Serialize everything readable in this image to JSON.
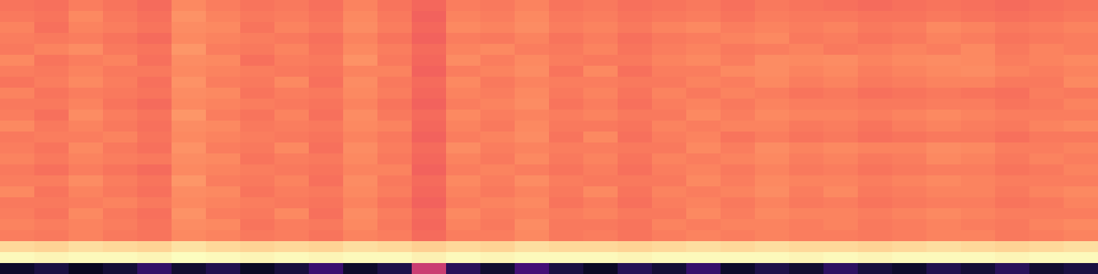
{
  "chart_data": {
    "type": "heatmap",
    "tick_labels": false,
    "zlim": [
      0,
      100
    ],
    "cells": [
      [
        71,
        70,
        73,
        71,
        69,
        75,
        73,
        71,
        72,
        70,
        74,
        71,
        68,
        73,
        72,
        74,
        71,
        72,
        70,
        71,
        72,
        70,
        72,
        71,
        70,
        69,
        70,
        71,
        70,
        69,
        70,
        71
      ],
      [
        72,
        71,
        75,
        72,
        70,
        77,
        74,
        72,
        73,
        71,
        75,
        72,
        67,
        74,
        73,
        75,
        72,
        73,
        71,
        72,
        73,
        71,
        73,
        72,
        72,
        71,
        71,
        72,
        71,
        70,
        71,
        72
      ],
      [
        74,
        70,
        74,
        73,
        71,
        76,
        75,
        71,
        74,
        72,
        76,
        73,
        68,
        75,
        74,
        76,
        73,
        74,
        72,
        74,
        75,
        73,
        74,
        73,
        74,
        72,
        73,
        75,
        74,
        72,
        73,
        74
      ],
      [
        73,
        72,
        73,
        71,
        69,
        75,
        74,
        73,
        72,
        70,
        74,
        71,
        67,
        73,
        72,
        74,
        71,
        73,
        70,
        72,
        73,
        74,
        75,
        72,
        73,
        71,
        72,
        74,
        73,
        71,
        72,
        73
      ],
      [
        72,
        74,
        76,
        72,
        71,
        78,
        73,
        72,
        74,
        71,
        75,
        73,
        69,
        74,
        75,
        73,
        72,
        74,
        71,
        73,
        74,
        72,
        73,
        74,
        72,
        73,
        74,
        73,
        75,
        72,
        74,
        73
      ],
      [
        75,
        71,
        73,
        74,
        70,
        76,
        75,
        70,
        73,
        72,
        77,
        72,
        68,
        76,
        73,
        75,
        73,
        72,
        72,
        74,
        75,
        73,
        76,
        75,
        76,
        74,
        75,
        76,
        75,
        73,
        74,
        75
      ],
      [
        73,
        72,
        74,
        72,
        72,
        75,
        74,
        73,
        72,
        71,
        74,
        74,
        67,
        73,
        74,
        76,
        71,
        75,
        70,
        73,
        73,
        75,
        76,
        74,
        75,
        73,
        74,
        75,
        76,
        74,
        73,
        74
      ],
      [
        71,
        73,
        75,
        73,
        70,
        77,
        73,
        72,
        75,
        70,
        76,
        72,
        69,
        75,
        72,
        74,
        73,
        73,
        72,
        72,
        74,
        73,
        75,
        73,
        74,
        72,
        73,
        74,
        74,
        72,
        72,
        75
      ],
      [
        74,
        71,
        73,
        72,
        71,
        76,
        75,
        71,
        73,
        72,
        75,
        73,
        68,
        74,
        73,
        75,
        72,
        74,
        71,
        74,
        72,
        74,
        73,
        71,
        72,
        70,
        71,
        72,
        71,
        70,
        73,
        72
      ],
      [
        72,
        72,
        74,
        71,
        69,
        75,
        74,
        73,
        72,
        71,
        74,
        71,
        67,
        73,
        74,
        76,
        71,
        73,
        70,
        73,
        74,
        72,
        74,
        73,
        73,
        72,
        72,
        73,
        73,
        71,
        72,
        74
      ],
      [
        73,
        70,
        76,
        73,
        71,
        78,
        73,
        71,
        74,
        70,
        76,
        72,
        69,
        75,
        73,
        74,
        73,
        74,
        72,
        72,
        75,
        73,
        75,
        74,
        74,
        73,
        74,
        75,
        74,
        73,
        73,
        73
      ],
      [
        75,
        72,
        74,
        72,
        70,
        76,
        75,
        72,
        73,
        72,
        75,
        74,
        68,
        74,
        72,
        75,
        72,
        72,
        71,
        74,
        73,
        74,
        74,
        72,
        73,
        71,
        73,
        74,
        73,
        72,
        74,
        75
      ],
      [
        72,
        73,
        73,
        74,
        71,
        75,
        74,
        73,
        72,
        71,
        74,
        72,
        67,
        73,
        74,
        76,
        71,
        75,
        70,
        73,
        74,
        71,
        73,
        71,
        72,
        70,
        71,
        72,
        72,
        70,
        72,
        72
      ],
      [
        73,
        71,
        75,
        72,
        70,
        77,
        73,
        72,
        75,
        70,
        76,
        73,
        69,
        76,
        73,
        74,
        73,
        73,
        72,
        72,
        75,
        73,
        76,
        74,
        75,
        74,
        74,
        76,
        75,
        73,
        73,
        74
      ],
      [
        74,
        72,
        74,
        73,
        72,
        76,
        75,
        71,
        73,
        72,
        75,
        72,
        68,
        74,
        72,
        75,
        72,
        74,
        71,
        74,
        73,
        74,
        75,
        73,
        74,
        72,
        73,
        75,
        74,
        72,
        74,
        73
      ],
      [
        72,
        70,
        73,
        71,
        69,
        75,
        74,
        73,
        72,
        71,
        74,
        74,
        67,
        73,
        74,
        73,
        71,
        73,
        70,
        73,
        74,
        72,
        74,
        72,
        73,
        71,
        72,
        73,
        73,
        71,
        72,
        74
      ],
      [
        73,
        73,
        76,
        73,
        71,
        78,
        73,
        72,
        74,
        70,
        76,
        72,
        69,
        75,
        73,
        76,
        73,
        72,
        72,
        72,
        75,
        73,
        75,
        74,
        74,
        73,
        74,
        75,
        74,
        73,
        73,
        73
      ],
      [
        75,
        71,
        74,
        72,
        70,
        76,
        75,
        71,
        73,
        72,
        75,
        73,
        68,
        74,
        72,
        74,
        72,
        75,
        71,
        74,
        73,
        74,
        76,
        73,
        75,
        72,
        73,
        74,
        74,
        72,
        74,
        75
      ],
      [
        72,
        72,
        73,
        74,
        72,
        75,
        74,
        73,
        72,
        71,
        74,
        71,
        67,
        73,
        74,
        75,
        71,
        73,
        70,
        73,
        74,
        72,
        74,
        72,
        73,
        71,
        72,
        73,
        73,
        71,
        72,
        74
      ],
      [
        73,
        71,
        75,
        72,
        70,
        77,
        73,
        72,
        75,
        70,
        76,
        73,
        69,
        75,
        73,
        74,
        73,
        74,
        72,
        72,
        75,
        73,
        75,
        74,
        74,
        73,
        74,
        75,
        74,
        73,
        73,
        73
      ],
      [
        74,
        73,
        74,
        73,
        71,
        76,
        75,
        71,
        73,
        72,
        75,
        72,
        68,
        74,
        72,
        76,
        72,
        72,
        71,
        74,
        73,
        74,
        74,
        73,
        74,
        72,
        73,
        74,
        73,
        72,
        74,
        75
      ],
      [
        73,
        72,
        74,
        72,
        71,
        75,
        74,
        72,
        73,
        71,
        74,
        73,
        69,
        73,
        73,
        75,
        72,
        73,
        71,
        73,
        74,
        73,
        74,
        73,
        73,
        72,
        73,
        74,
        74,
        72,
        73,
        74
      ],
      [
        92,
        91,
        93,
        92,
        91,
        94,
        92,
        91,
        92,
        91,
        93,
        92,
        90,
        92,
        91,
        93,
        92,
        92,
        91,
        92,
        93,
        92,
        93,
        92,
        92,
        91,
        92,
        93,
        92,
        91,
        92,
        93
      ],
      [
        99,
        98,
        99,
        99,
        98,
        100,
        99,
        98,
        99,
        98,
        99,
        99,
        97,
        99,
        98,
        99,
        99,
        99,
        98,
        99,
        99,
        99,
        99,
        98,
        99,
        98,
        99,
        99,
        99,
        98,
        99,
        99
      ],
      [
        8,
        12,
        6,
        10,
        18,
        9,
        14,
        7,
        11,
        20,
        8,
        13,
        55,
        16,
        9,
        22,
        12,
        7,
        15,
        10,
        19,
        8,
        13,
        9,
        17,
        11,
        8,
        14,
        10,
        16,
        9,
        12
      ]
    ]
  }
}
